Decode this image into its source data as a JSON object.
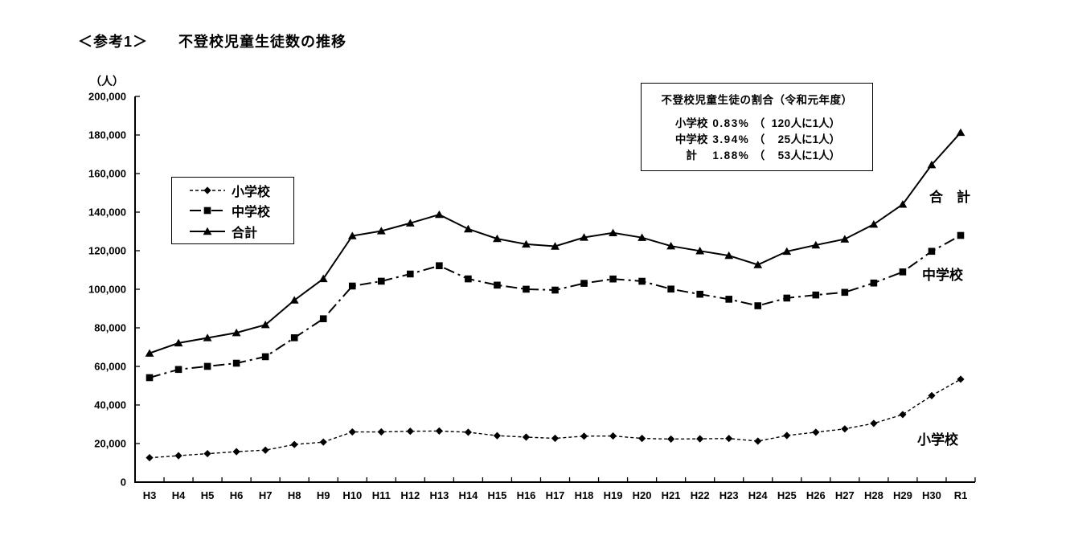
{
  "page": {
    "title_prefix": "＜参考1＞",
    "title_main": "不登校児童生徒数の推移"
  },
  "chart_data": {
    "type": "line",
    "title": "不登校児童生徒数の推移",
    "unit_label": "（人）",
    "xlabel": "",
    "ylabel": "人",
    "ylim": [
      0,
      200000
    ],
    "ytick_step": 20000,
    "grid": false,
    "legend_position": "upper-left-inside",
    "line_color": "#000000",
    "categories": [
      "H3",
      "H4",
      "H5",
      "H6",
      "H7",
      "H8",
      "H9",
      "H10",
      "H11",
      "H12",
      "H13",
      "H14",
      "H15",
      "H16",
      "H17",
      "H18",
      "H19",
      "H20",
      "H21",
      "H22",
      "H23",
      "H24",
      "H25",
      "H26",
      "H27",
      "H28",
      "H29",
      "H30",
      "R1"
    ],
    "series": [
      {
        "name": "小学校",
        "marker": "diamond",
        "dash": "4 3",
        "stroke_width": 1.4,
        "values": [
          12645,
          13710,
          14769,
          15786,
          16569,
          19498,
          20765,
          26017,
          26047,
          26373,
          26511,
          25869,
          24077,
          23318,
          22709,
          23825,
          23927,
          22652,
          22327,
          22463,
          22622,
          21243,
          24175,
          25864,
          27583,
          30448,
          35032,
          44841,
          53350
        ]
      },
      {
        "name": "中学校",
        "marker": "square",
        "dash": "14 5 3 5",
        "stroke_width": 2,
        "values": [
          54172,
          58421,
          60039,
          61663,
          65022,
          74853,
          84701,
          101675,
          104180,
          107913,
          112211,
          105383,
          102149,
          100040,
          99578,
          103069,
          105328,
          104153,
          100105,
          97428,
          94836,
          91446,
          95442,
          97033,
          98408,
          103235,
          108999,
          119687,
          127922
        ]
      },
      {
        "name": "合計",
        "marker": "triangle",
        "dash": "",
        "stroke_width": 2,
        "values": [
          66817,
          72131,
          74808,
          77449,
          81591,
          94351,
          105466,
          127692,
          130227,
          134286,
          138722,
          131252,
          126226,
          123358,
          122287,
          126894,
          129255,
          126805,
          122432,
          119891,
          117458,
          112689,
          119617,
          122897,
          125991,
          133683,
          144031,
          164528,
          181272
        ]
      }
    ],
    "annotations": [
      {
        "text": "合　計"
      },
      {
        "text": "中学校"
      },
      {
        "text": "小学校"
      }
    ]
  },
  "info_box": {
    "title": "不登校児童生徒の割合（令和元年度）",
    "paren_open": "（",
    "paren_close": "）",
    "rows": [
      {
        "school": "小学校",
        "rate": "0.83%",
        "ratio_num": "120",
        "ratio_suffix": "人に1人"
      },
      {
        "school": "中学校",
        "rate": "3.94%",
        "ratio_num": "25",
        "ratio_suffix": "人に1人"
      },
      {
        "school": "計",
        "rate": "1.88%",
        "ratio_num": "53",
        "ratio_suffix": "人に1人"
      }
    ]
  }
}
